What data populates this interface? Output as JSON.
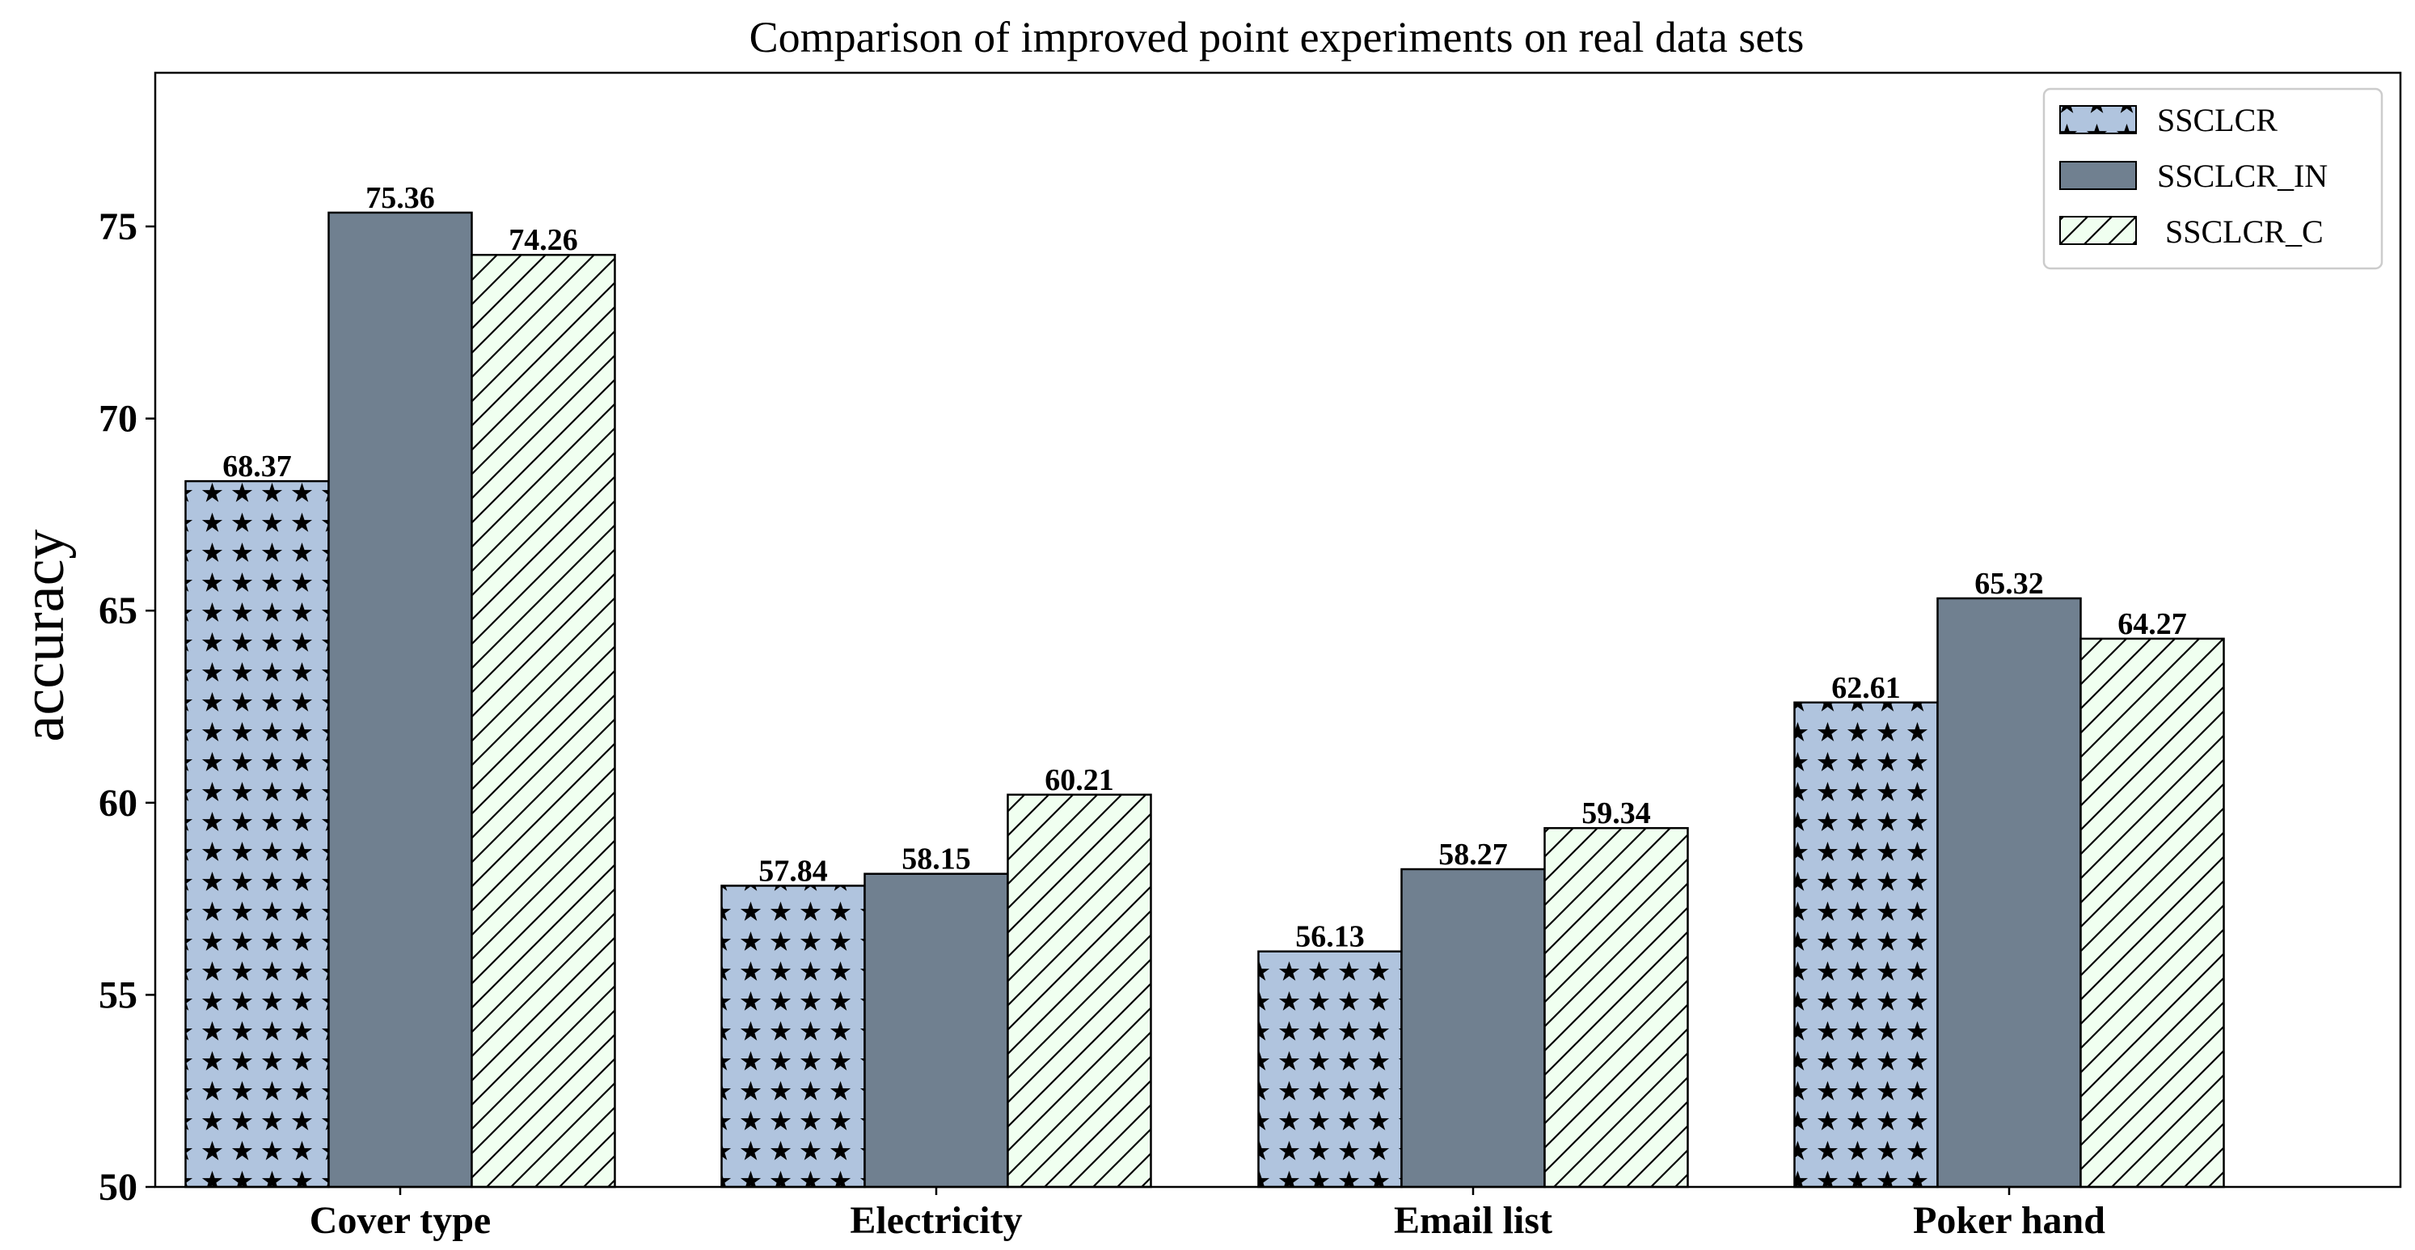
{
  "chart_data": {
    "type": "bar",
    "title": "Comparison of improved point experiments on real data sets",
    "xlabel": "",
    "ylabel": "accuracy",
    "ylim": [
      50,
      79
    ],
    "yticks": [
      "50",
      "55",
      "60",
      "65",
      "70",
      "75"
    ],
    "categories": [
      "Cover type",
      "Electricity",
      "Email list",
      "Poker hand"
    ],
    "series": [
      {
        "name": "SSCLCR",
        "pattern": "stars",
        "color": "#b0c4de",
        "values": [
          68.37,
          57.84,
          56.13,
          62.61
        ],
        "labels": [
          "68.37",
          "57.84",
          "56.13",
          "62.61"
        ]
      },
      {
        "name": "SSCLCR_IN",
        "pattern": "solid",
        "color": "#708090",
        "values": [
          75.36,
          58.15,
          58.27,
          65.32
        ],
        "labels": [
          "75.36",
          "58.15",
          "58.27",
          "65.32"
        ]
      },
      {
        "name": " SSCLCR_C",
        "pattern": "hatch",
        "color": "#f0fff0",
        "values": [
          74.26,
          60.21,
          59.34,
          64.27
        ],
        "labels": [
          "74.26",
          "60.21",
          "59.34",
          "64.27"
        ]
      }
    ],
    "legend_position": "top-right",
    "grid": false
  }
}
